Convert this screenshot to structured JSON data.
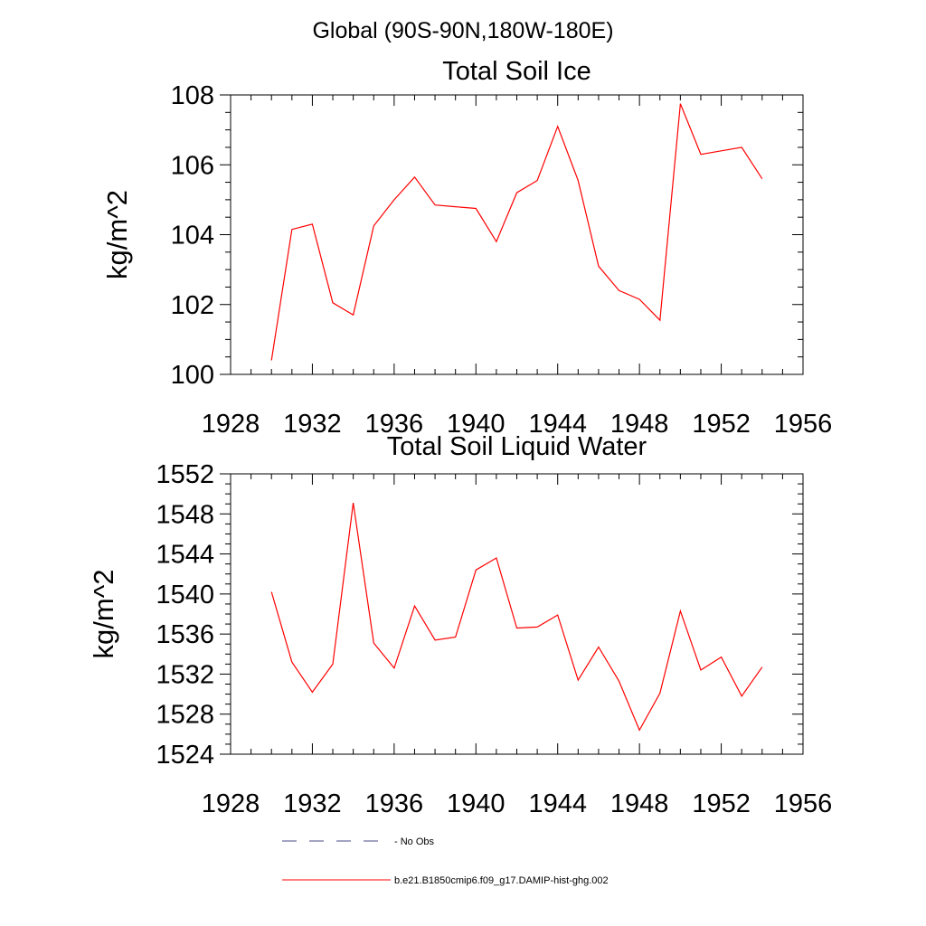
{
  "figure": {
    "suptitle": "Global (90S-90N,180W-180E)"
  },
  "legend": {
    "entries": [
      {
        "label": "No Obs",
        "color": "#4a4a8a",
        "style": "dashed"
      },
      {
        "label": "b.e21.B1850cmip6.f09_g17.DAMIP-hist-ghg.002",
        "color": "#ff0000",
        "style": "solid"
      }
    ]
  },
  "chart_data": [
    {
      "type": "line",
      "title": "Total Soil Ice",
      "xlabel": "",
      "ylabel": "kg/m^2",
      "xlim": [
        1928,
        1956
      ],
      "ylim": [
        100,
        108
      ],
      "xticks": [
        1928,
        1932,
        1936,
        1940,
        1944,
        1948,
        1952,
        1956
      ],
      "yticks": [
        100,
        102,
        104,
        106,
        108
      ],
      "grid": false,
      "series": [
        {
          "color": "#ff0000",
          "x": [
            1930,
            1931,
            1932,
            1933,
            1934,
            1935,
            1936,
            1937,
            1938,
            1939,
            1940,
            1941,
            1942,
            1943,
            1944,
            1945,
            1946,
            1947,
            1948,
            1949,
            1950,
            1951,
            1952,
            1953,
            1954
          ],
          "values": [
            100.4,
            104.15,
            104.3,
            102.05,
            101.7,
            104.25,
            105.0,
            105.65,
            104.85,
            104.8,
            104.75,
            103.8,
            105.2,
            105.55,
            107.1,
            105.55,
            103.1,
            102.4,
            102.15,
            101.55,
            107.75,
            106.3,
            106.4,
            106.5,
            105.6
          ]
        }
      ]
    },
    {
      "type": "line",
      "title": "Total Soil Liquid Water",
      "xlabel": "",
      "ylabel": "kg/m^2",
      "xlim": [
        1928,
        1956
      ],
      "ylim": [
        1524,
        1552
      ],
      "xticks": [
        1928,
        1932,
        1936,
        1940,
        1944,
        1948,
        1952,
        1956
      ],
      "yticks": [
        1524,
        1528,
        1532,
        1536,
        1540,
        1544,
        1548,
        1552
      ],
      "grid": false,
      "series": [
        {
          "color": "#ff0000",
          "x": [
            1930,
            1931,
            1932,
            1933,
            1934,
            1935,
            1936,
            1937,
            1938,
            1939,
            1940,
            1941,
            1942,
            1943,
            1944,
            1945,
            1946,
            1947,
            1948,
            1949,
            1950,
            1951,
            1952,
            1953,
            1954
          ],
          "values": [
            1540.2,
            1533.2,
            1530.2,
            1533.0,
            1549.1,
            1535.1,
            1532.6,
            1538.8,
            1535.4,
            1535.7,
            1542.4,
            1543.6,
            1536.6,
            1536.7,
            1537.9,
            1531.4,
            1534.7,
            1531.3,
            1526.4,
            1530.1,
            1538.3,
            1532.4,
            1533.7,
            1529.8,
            1532.7
          ]
        }
      ]
    }
  ]
}
